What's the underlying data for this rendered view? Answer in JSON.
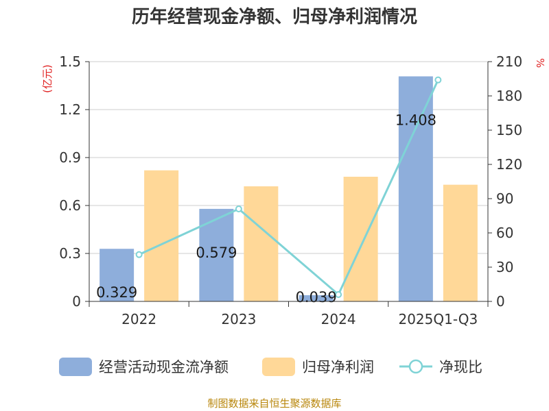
{
  "chart_data": {
    "type": "bar",
    "title": "历年经营现金净额、归母净利润情况",
    "categories": [
      "2022",
      "2023",
      "2024",
      "2025Q1-Q3"
    ],
    "series": [
      {
        "name": "经营活动现金流净额",
        "type": "bar",
        "axis": "left",
        "values": [
          0.329,
          0.579,
          0.039,
          1.408
        ],
        "color": "#8eaedb"
      },
      {
        "name": "归母净利润",
        "type": "bar",
        "axis": "left",
        "values": [
          0.82,
          0.72,
          0.78,
          0.73
        ],
        "color": "#ffd898"
      },
      {
        "name": "净现比",
        "type": "line",
        "axis": "right",
        "values": [
          41,
          81,
          6,
          194
        ],
        "color": "#7fd3d6"
      }
    ],
    "bar_labels": [
      "0.329",
      "0.579",
      "0.039",
      "1.408"
    ],
    "y_left": {
      "unit": "(亿元)",
      "ylim": [
        0,
        1.5
      ],
      "ticks": [
        "0",
        "0.3",
        "0.6",
        "0.9",
        "1.2",
        "1.5"
      ]
    },
    "y_right": {
      "unit": "%",
      "ylim": [
        0,
        210
      ],
      "ticks": [
        "0",
        "30",
        "60",
        "90",
        "120",
        "150",
        "180",
        "210"
      ]
    },
    "grid": true,
    "legend_position": "bottom"
  },
  "source": "制图数据来自恒生聚源数据库"
}
